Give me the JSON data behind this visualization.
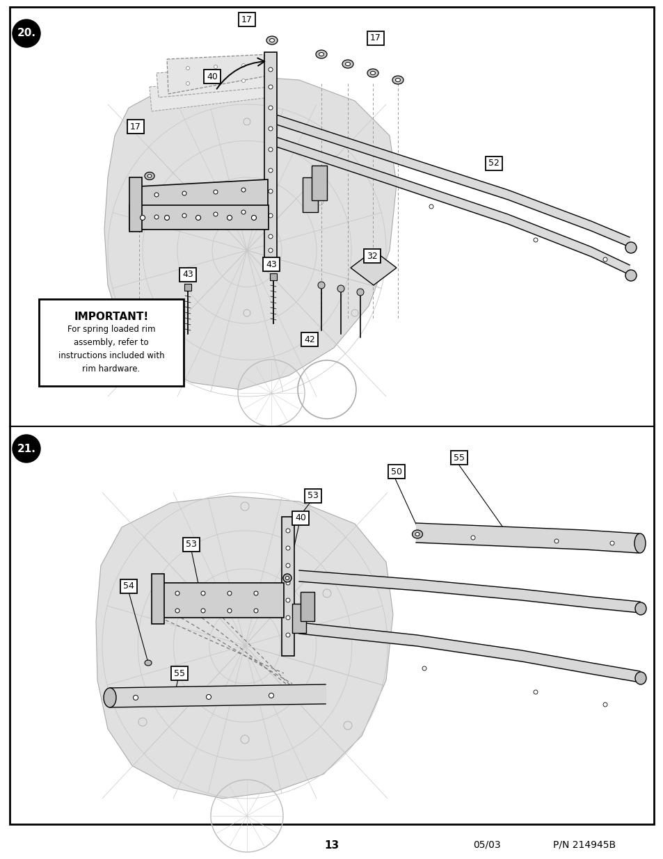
{
  "page_num": "13",
  "date": "05/03",
  "part_num": "P/N 214945B",
  "bg_color": "#ffffff",
  "important_title": "IMPORTANT!",
  "important_text": "For spring loaded rim\nassembly, refer to\ninstructions included with\nrim hardware."
}
